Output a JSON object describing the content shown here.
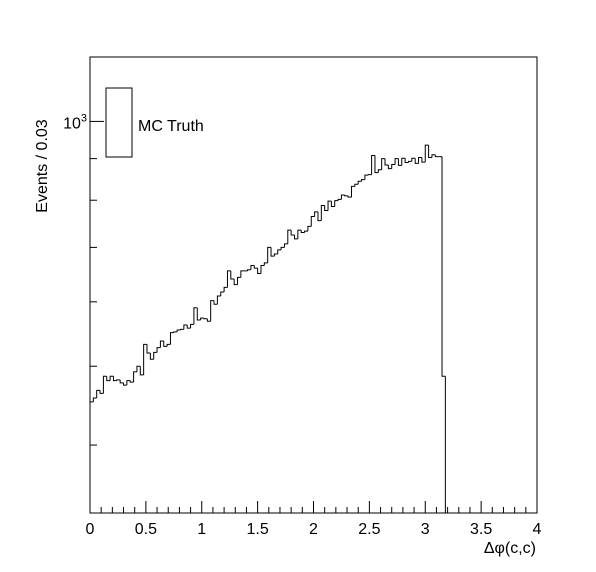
{
  "chart_data": {
    "type": "histogram",
    "xlabel": "Δφ(c,c)",
    "ylabel": "Events / 0.03",
    "xlim": [
      0,
      4
    ],
    "ylim": [
      330,
      1200
    ],
    "yscale": "log",
    "x_ticks": [
      "0",
      "0.5",
      "1",
      "1.5",
      "2",
      "2.5",
      "3",
      "3.5",
      "4"
    ],
    "y_ticks": [
      {
        "base": "10",
        "exp": "3",
        "value": 1000
      }
    ],
    "bin_width": 0.03,
    "grid": false,
    "legend": {
      "position": "top-left",
      "entries": [
        "MC Truth"
      ]
    },
    "series": [
      {
        "name": "MC Truth",
        "color": "#000000",
        "bins": [
          [
            0.0,
            452
          ],
          [
            0.03,
            457
          ],
          [
            0.06,
            467
          ],
          [
            0.09,
            463
          ],
          [
            0.12,
            486
          ],
          [
            0.15,
            480
          ],
          [
            0.18,
            486
          ],
          [
            0.21,
            480
          ],
          [
            0.24,
            481
          ],
          [
            0.27,
            477
          ],
          [
            0.3,
            474
          ],
          [
            0.33,
            480
          ],
          [
            0.36,
            478
          ],
          [
            0.39,
            492
          ],
          [
            0.42,
            500
          ],
          [
            0.45,
            488
          ],
          [
            0.48,
            532
          ],
          [
            0.51,
            519
          ],
          [
            0.54,
            510
          ],
          [
            0.57,
            520
          ],
          [
            0.6,
            527
          ],
          [
            0.63,
            537
          ],
          [
            0.66,
            529
          ],
          [
            0.69,
            532
          ],
          [
            0.72,
            550
          ],
          [
            0.75,
            551
          ],
          [
            0.78,
            554
          ],
          [
            0.81,
            555
          ],
          [
            0.84,
            562
          ],
          [
            0.87,
            557
          ],
          [
            0.9,
            563
          ],
          [
            0.93,
            590
          ],
          [
            0.96,
            570
          ],
          [
            0.99,
            573
          ],
          [
            1.02,
            572
          ],
          [
            1.05,
            568
          ],
          [
            1.08,
            602
          ],
          [
            1.11,
            596
          ],
          [
            1.14,
            610
          ],
          [
            1.17,
            617
          ],
          [
            1.2,
            625
          ],
          [
            1.23,
            655
          ],
          [
            1.26,
            640
          ],
          [
            1.29,
            630
          ],
          [
            1.32,
            643
          ],
          [
            1.35,
            655
          ],
          [
            1.38,
            655
          ],
          [
            1.41,
            657
          ],
          [
            1.44,
            665
          ],
          [
            1.47,
            660
          ],
          [
            1.5,
            650
          ],
          [
            1.53,
            665
          ],
          [
            1.56,
            670
          ],
          [
            1.59,
            700
          ],
          [
            1.62,
            683
          ],
          [
            1.65,
            687
          ],
          [
            1.68,
            695
          ],
          [
            1.71,
            700
          ],
          [
            1.74,
            707
          ],
          [
            1.77,
            735
          ],
          [
            1.8,
            725
          ],
          [
            1.83,
            717
          ],
          [
            1.86,
            735
          ],
          [
            1.89,
            730
          ],
          [
            1.92,
            733
          ],
          [
            1.95,
            743
          ],
          [
            1.98,
            764
          ],
          [
            2.01,
            774
          ],
          [
            2.04,
            755
          ],
          [
            2.07,
            788
          ],
          [
            2.1,
            777
          ],
          [
            2.13,
            798
          ],
          [
            2.16,
            786
          ],
          [
            2.19,
            799
          ],
          [
            2.22,
            802
          ],
          [
            2.25,
            812
          ],
          [
            2.28,
            810
          ],
          [
            2.31,
            807
          ],
          [
            2.34,
            832
          ],
          [
            2.37,
            837
          ],
          [
            2.4,
            844
          ],
          [
            2.43,
            848
          ],
          [
            2.46,
            859
          ],
          [
            2.49,
            860
          ],
          [
            2.52,
            908
          ],
          [
            2.55,
            865
          ],
          [
            2.58,
            872
          ],
          [
            2.61,
            900
          ],
          [
            2.64,
            884
          ],
          [
            2.67,
            875
          ],
          [
            2.7,
            885
          ],
          [
            2.73,
            900
          ],
          [
            2.76,
            883
          ],
          [
            2.79,
            901
          ],
          [
            2.82,
            890
          ],
          [
            2.85,
            893
          ],
          [
            2.88,
            901
          ],
          [
            2.91,
            888
          ],
          [
            2.94,
            903
          ],
          [
            2.97,
            891
          ],
          [
            3.0,
            935
          ],
          [
            3.03,
            903
          ],
          [
            3.06,
            910
          ],
          [
            3.09,
            905
          ],
          [
            3.12,
            905
          ],
          [
            3.15,
            486
          ],
          [
            3.18,
            0
          ],
          [
            3.21,
            0
          ]
        ]
      }
    ]
  }
}
